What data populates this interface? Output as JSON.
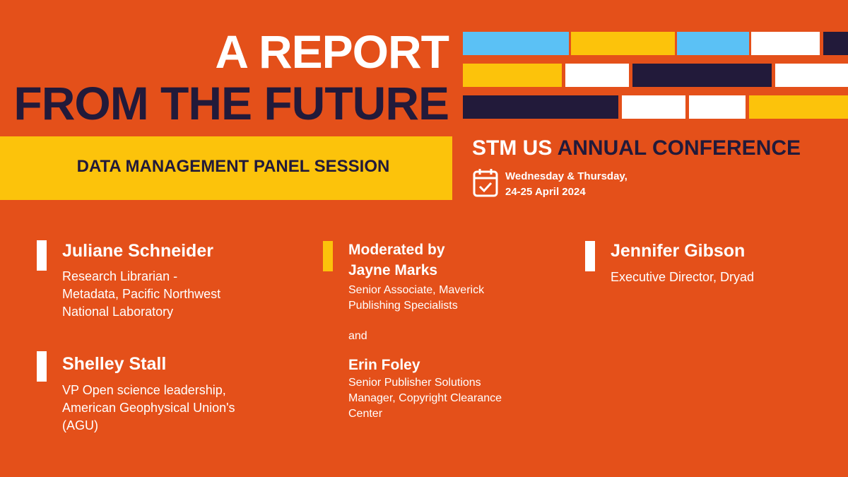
{
  "header": {
    "title_line1": "A REPORT",
    "title_line2": "FROM THE FUTURE",
    "session": "DATA MANAGEMENT PANEL SESSION"
  },
  "conference": {
    "org": "STM US",
    "name": "ANNUAL CONFERENCE",
    "date_lines": [
      "Wednesday & Thursday,",
      "24-25 April 2024"
    ]
  },
  "speakers": [
    {
      "name": "Juliane Schneider",
      "role_lines": [
        "Research Librarian -",
        "Metadata, Pacific Northwest",
        "National Laboratory"
      ]
    },
    {
      "name": "Shelley Stall",
      "role_lines": [
        "VP Open science leadership,",
        "American Geophysical Union's",
        "(AGU)"
      ]
    },
    {
      "name": "Jennifer Gibson",
      "role_lines": [
        "Executive Director, Dryad"
      ]
    }
  ],
  "moderators": {
    "intro": "Moderated by",
    "conjunction": "and",
    "people": [
      {
        "name": "Jayne Marks",
        "role_lines": [
          "Senior Associate, Maverick",
          "Publishing Specialists"
        ]
      },
      {
        "name": "Erin Foley",
        "role_lines": [
          "Senior Publisher Solutions",
          "Manager, Copyright Clearance",
          "Center"
        ]
      }
    ]
  }
}
